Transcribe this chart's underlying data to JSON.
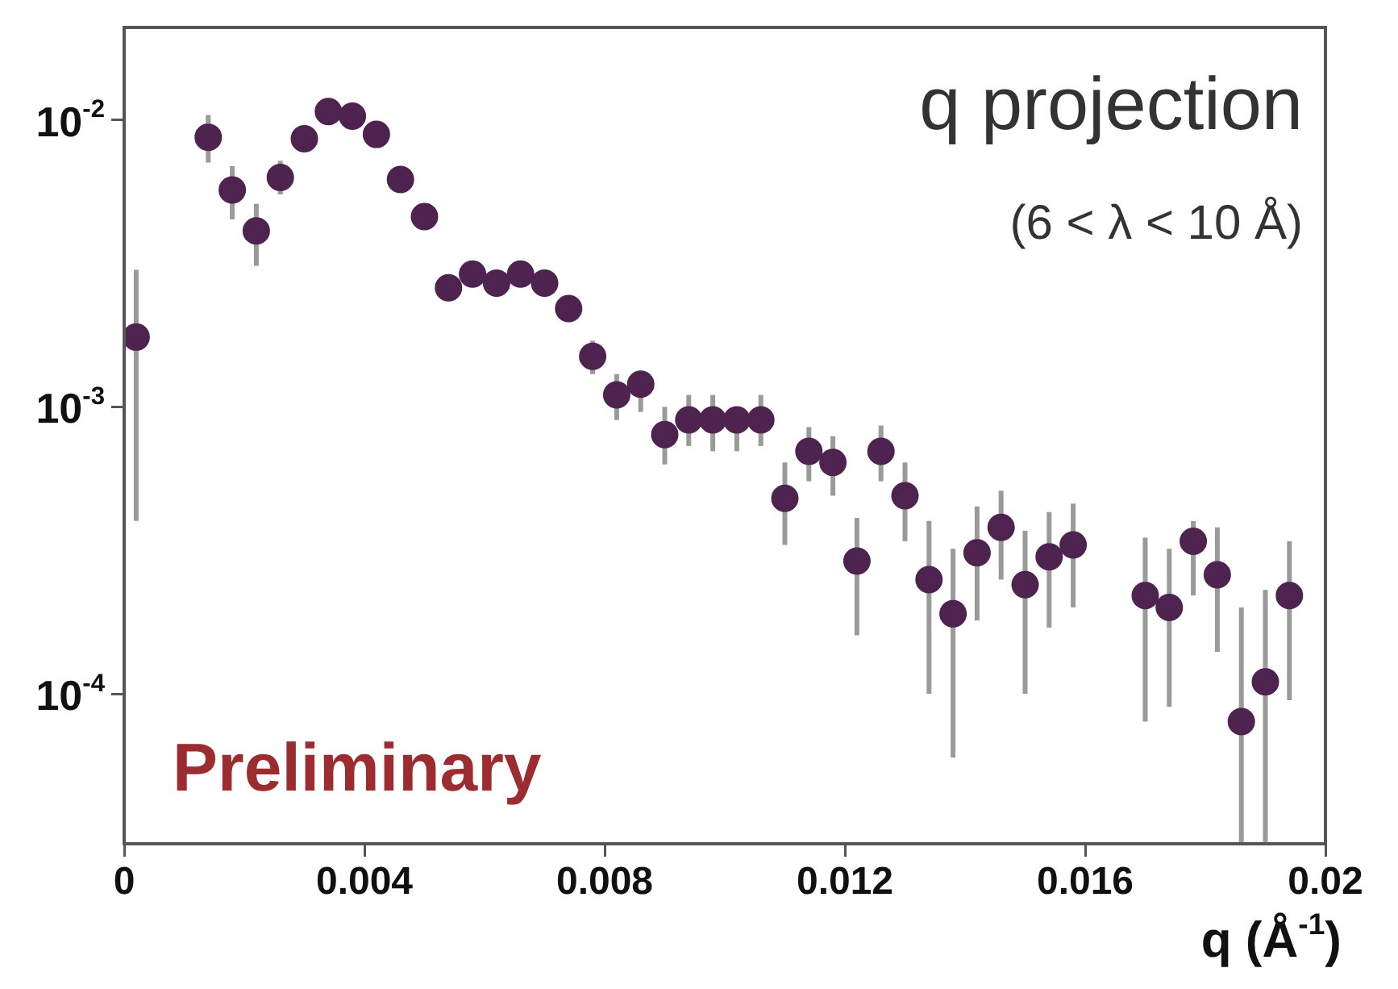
{
  "chart_data": {
    "type": "scatter",
    "title": "q projection",
    "subtitle": "(6 < λ < 10 Å)",
    "xlabel": "q (Å$^{-1}$)",
    "annotations": [
      "Preliminary"
    ],
    "xlim": [
      0,
      0.02
    ],
    "xticks": [
      0,
      0.004,
      0.008,
      0.012,
      0.016,
      0.02
    ],
    "ylim": [
      3e-05,
      0.021
    ],
    "yticks": [
      {
        "value": 0.0001,
        "label": "10$^{-4}$"
      },
      {
        "value": 0.001,
        "label": "10$^{-3}$"
      },
      {
        "value": 0.01,
        "label": "10$^{-2}$"
      }
    ],
    "log": "y",
    "grid": false,
    "legend": false,
    "marker": "circle",
    "series": [
      {
        "color": "#4f2350",
        "x": [
          0.0002,
          0.0014,
          0.0018,
          0.0022,
          0.0026,
          0.003,
          0.0034,
          0.0038,
          0.0042,
          0.0046,
          0.005,
          0.0054,
          0.0058,
          0.0062,
          0.0066,
          0.007,
          0.0074,
          0.0078,
          0.0082,
          0.0086,
          0.009,
          0.0094,
          0.0098,
          0.0102,
          0.0106,
          0.011,
          0.0114,
          0.0118,
          0.0122,
          0.0126,
          0.013,
          0.0134,
          0.0138,
          0.0142,
          0.0146,
          0.015,
          0.0154,
          0.0158,
          0.017,
          0.0174,
          0.0178,
          0.0182,
          0.0186,
          0.019,
          0.0194
        ],
        "values": [
          0.00175,
          0.0087,
          0.0057,
          0.0041,
          0.0063,
          0.0086,
          0.0107,
          0.0103,
          0.0089,
          0.0062,
          0.0046,
          0.0026,
          0.0029,
          0.0027,
          0.0029,
          0.0027,
          0.0022,
          0.0015,
          0.0011,
          0.0012,
          0.0008,
          0.0009,
          0.0009,
          0.0009,
          0.0009,
          0.00048,
          0.0007,
          0.00064,
          0.00029,
          0.0007,
          0.00049,
          0.00025,
          0.00019,
          0.00031,
          0.00038,
          0.00024,
          0.0003,
          0.00033,
          0.00022,
          0.0002,
          0.00034,
          0.00026,
          8e-05,
          0.00011,
          0.00022
        ],
        "errors": [
          [
            0.0004,
            0.003
          ],
          [
            0.0071,
            0.0104
          ],
          [
            0.0045,
            0.0069
          ],
          [
            0.0031,
            0.0051
          ],
          [
            0.0055,
            0.0072
          ],
          null,
          null,
          null,
          null,
          null,
          null,
          null,
          null,
          null,
          null,
          null,
          null,
          [
            0.0013,
            0.0017
          ],
          [
            0.0009,
            0.0013
          ],
          [
            0.00096,
            0.0013
          ],
          [
            0.00063,
            0.001
          ],
          [
            0.00073,
            0.0011
          ],
          [
            0.0007,
            0.0011
          ],
          [
            0.0007,
            0.001
          ],
          [
            0.00073,
            0.0011
          ],
          [
            0.00033,
            0.00064
          ],
          [
            0.00055,
            0.00085
          ],
          [
            0.00049,
            0.00079
          ],
          [
            0.00016,
            0.00041
          ],
          [
            0.00055,
            0.00086
          ],
          [
            0.00034,
            0.00064
          ],
          [
            0.0001,
            0.0004
          ],
          [
            6e-05,
            0.00032
          ],
          [
            0.00018,
            0.00045
          ],
          [
            0.00025,
            0.00051
          ],
          [
            0.0001,
            0.00037
          ],
          [
            0.00017,
            0.00043
          ],
          [
            0.0002,
            0.00046
          ],
          [
            8e-05,
            0.00035
          ],
          [
            9e-05,
            0.00032
          ],
          [
            0.00022,
            0.0004
          ],
          [
            0.00014,
            0.00038
          ],
          [
            3e-05,
            0.0002
          ],
          [
            3e-05,
            0.00023
          ],
          [
            9.5e-05,
            0.00034
          ]
        ]
      }
    ]
  }
}
